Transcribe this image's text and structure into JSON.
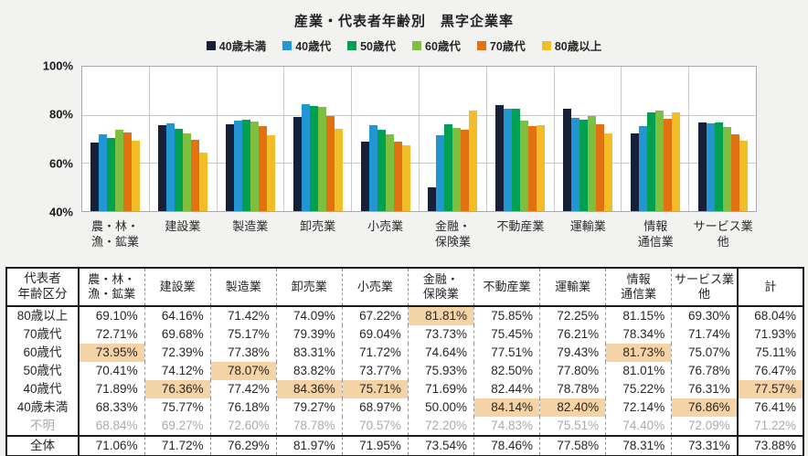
{
  "chart": {
    "y_ticks": [
      "100%",
      "80%",
      "60%",
      "40%"
    ]
  },
  "chart_data": {
    "type": "bar",
    "title": "産業・代表者年齢別　黒字企業率",
    "categories": [
      "農・林・漁・鉱業",
      "建設業",
      "製造業",
      "卸売業",
      "小売業",
      "金融・保険業",
      "不動産業",
      "運輸業",
      "情報通信業",
      "サービス業他"
    ],
    "category_lines": [
      [
        "農・林・",
        "漁・鉱業"
      ],
      [
        "建設業"
      ],
      [
        "製造業"
      ],
      [
        "卸売業"
      ],
      [
        "小売業"
      ],
      [
        "金融・",
        "保険業"
      ],
      [
        "不動産業"
      ],
      [
        "運輸業"
      ],
      [
        "情報",
        "通信業"
      ],
      [
        "サービス業",
        "他"
      ]
    ],
    "series": [
      {
        "name": "40歳未満",
        "color": "#162038",
        "values": [
          68.33,
          75.77,
          76.18,
          79.27,
          68.97,
          50.0,
          84.14,
          82.4,
          72.14,
          76.86
        ]
      },
      {
        "name": "40歳代",
        "color": "#2196d3",
        "values": [
          71.89,
          76.36,
          77.42,
          84.36,
          75.71,
          71.69,
          82.44,
          78.78,
          75.22,
          76.31
        ]
      },
      {
        "name": "50歳代",
        "color": "#00a050",
        "values": [
          70.41,
          74.12,
          78.07,
          83.82,
          73.77,
          75.93,
          82.5,
          77.8,
          81.01,
          76.78
        ]
      },
      {
        "name": "60歳代",
        "color": "#7fbf3f",
        "values": [
          73.95,
          72.39,
          77.38,
          83.31,
          71.72,
          74.64,
          77.51,
          79.43,
          81.73,
          75.07
        ]
      },
      {
        "name": "70歳代",
        "color": "#e2720f",
        "values": [
          72.71,
          69.68,
          75.17,
          79.39,
          69.04,
          73.73,
          75.45,
          76.21,
          78.34,
          71.74
        ]
      },
      {
        "name": "80歳以上",
        "color": "#f2bd27",
        "values": [
          69.1,
          64.16,
          71.42,
          74.09,
          67.22,
          81.81,
          75.85,
          72.25,
          81.15,
          69.3
        ]
      }
    ],
    "ylim": [
      40,
      100
    ],
    "ylabel": "",
    "xlabel": "",
    "grid": true,
    "legend_position": "top"
  },
  "table": {
    "corner_header_lines": [
      "代表者",
      "年齢区分"
    ],
    "col_header_lines": [
      [
        "農・林・",
        "漁・鉱業"
      ],
      [
        "建設業"
      ],
      [
        "製造業"
      ],
      [
        "卸売業"
      ],
      [
        "小売業"
      ],
      [
        "金融・",
        "保険業"
      ],
      [
        "不動産業"
      ],
      [
        "運輸業"
      ],
      [
        "情報",
        "通信業"
      ],
      [
        "サービス業",
        "他"
      ],
      [
        "計"
      ]
    ],
    "highlight_color": "#f4d3a7",
    "rows": [
      {
        "label": "80歳以上",
        "values": [
          "69.10%",
          "64.16%",
          "71.42%",
          "74.09%",
          "67.22%",
          "81.81%",
          "75.85%",
          "72.25%",
          "81.15%",
          "69.30%",
          "68.04%"
        ],
        "highlight_cols": [
          5
        ],
        "muted": false,
        "total": false
      },
      {
        "label": "70歳代",
        "values": [
          "72.71%",
          "69.68%",
          "75.17%",
          "79.39%",
          "69.04%",
          "73.73%",
          "75.45%",
          "76.21%",
          "78.34%",
          "71.74%",
          "71.93%"
        ],
        "highlight_cols": [],
        "muted": false,
        "total": false
      },
      {
        "label": "60歳代",
        "values": [
          "73.95%",
          "72.39%",
          "77.38%",
          "83.31%",
          "71.72%",
          "74.64%",
          "77.51%",
          "79.43%",
          "81.73%",
          "75.07%",
          "75.11%"
        ],
        "highlight_cols": [
          0,
          8
        ],
        "muted": false,
        "total": false
      },
      {
        "label": "50歳代",
        "values": [
          "70.41%",
          "74.12%",
          "78.07%",
          "83.82%",
          "73.77%",
          "75.93%",
          "82.50%",
          "77.80%",
          "81.01%",
          "76.78%",
          "76.47%"
        ],
        "highlight_cols": [
          2
        ],
        "muted": false,
        "total": false
      },
      {
        "label": "40歳代",
        "values": [
          "71.89%",
          "76.36%",
          "77.42%",
          "84.36%",
          "75.71%",
          "71.69%",
          "82.44%",
          "78.78%",
          "75.22%",
          "76.31%",
          "77.57%"
        ],
        "highlight_cols": [
          1,
          3,
          4,
          10
        ],
        "muted": false,
        "total": false
      },
      {
        "label": "40歳未満",
        "values": [
          "68.33%",
          "75.77%",
          "76.18%",
          "79.27%",
          "68.97%",
          "50.00%",
          "84.14%",
          "82.40%",
          "72.14%",
          "76.86%",
          "76.41%"
        ],
        "highlight_cols": [
          6,
          7,
          9
        ],
        "muted": false,
        "total": false
      },
      {
        "label": "不明",
        "values": [
          "68.84%",
          "69.27%",
          "72.60%",
          "78.78%",
          "70.57%",
          "72.20%",
          "74.83%",
          "75.51%",
          "74.40%",
          "72.09%",
          "71.22%"
        ],
        "highlight_cols": [],
        "muted": true,
        "total": false
      },
      {
        "label": "全体",
        "values": [
          "71.06%",
          "71.72%",
          "76.29%",
          "81.97%",
          "71.95%",
          "73.54%",
          "78.46%",
          "77.58%",
          "78.31%",
          "73.31%",
          "73.88%"
        ],
        "highlight_cols": [],
        "muted": false,
        "total": true
      }
    ]
  }
}
